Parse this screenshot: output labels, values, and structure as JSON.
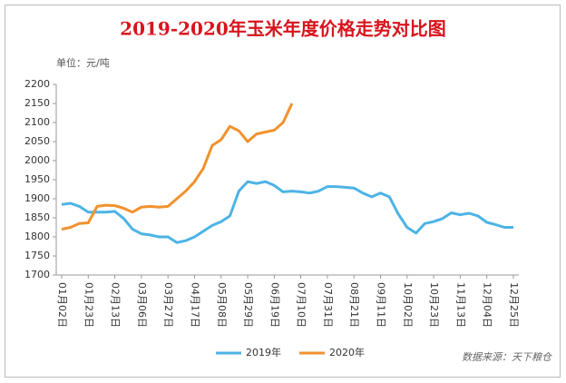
{
  "chart_data": {
    "type": "line",
    "title": "2019-2020年玉米年度价格走势对比图",
    "unit_label": "单位：元/吨",
    "source": "数据来源：天下粮仓",
    "categories": [
      "01月02日",
      null,
      null,
      "01月23日",
      null,
      null,
      "02月13日",
      null,
      null,
      "03月06日",
      null,
      null,
      "03月27日",
      null,
      null,
      "04月17日",
      null,
      null,
      "05月08日",
      null,
      null,
      "05月29日",
      null,
      null,
      "06月19日",
      null,
      null,
      "07月10日",
      null,
      null,
      "07月31日",
      null,
      null,
      "08月21日",
      null,
      null,
      "09月11日",
      null,
      null,
      "10月02日",
      null,
      null,
      "10月23日",
      null,
      null,
      "11月13日",
      null,
      null,
      "12月04日",
      null,
      null,
      "12月25日"
    ],
    "series": [
      {
        "name": "2019年",
        "color": "#4db3e6",
        "values": [
          1885,
          1888,
          1880,
          1865,
          1865,
          1865,
          1867,
          1848,
          1820,
          1808,
          1805,
          1800,
          1800,
          1785,
          1790,
          1800,
          1815,
          1830,
          1840,
          1855,
          1920,
          1945,
          1940,
          1945,
          1935,
          1918,
          1920,
          1918,
          1915,
          1920,
          1932,
          1932,
          1930,
          1928,
          1915,
          1905,
          1915,
          1905,
          1860,
          1825,
          1810,
          1835,
          1840,
          1848,
          1863,
          1858,
          1862,
          1855,
          1838,
          1832,
          1825,
          1825
        ]
      },
      {
        "name": "2020年",
        "color": "#f0922e",
        "values": [
          1820,
          1825,
          1835,
          1837,
          1880,
          1883,
          1882,
          1875,
          1865,
          1878,
          1880,
          1878,
          1880,
          1900,
          1920,
          1945,
          1980,
          2040,
          2055,
          2090,
          2078,
          2050,
          2070,
          2075,
          2080,
          2100,
          2150,
          null,
          null,
          null,
          null,
          null,
          null,
          null,
          null,
          null,
          null,
          null,
          null,
          null,
          null,
          null,
          null,
          null,
          null,
          null,
          null,
          null,
          null,
          null,
          null,
          null
        ]
      }
    ],
    "ylim": [
      1700,
      2200
    ],
    "yticks": [
      1700,
      1750,
      1800,
      1850,
      1900,
      1950,
      2000,
      2050,
      2100,
      2150,
      2200
    ],
    "grid": false,
    "legend": "bottom"
  }
}
